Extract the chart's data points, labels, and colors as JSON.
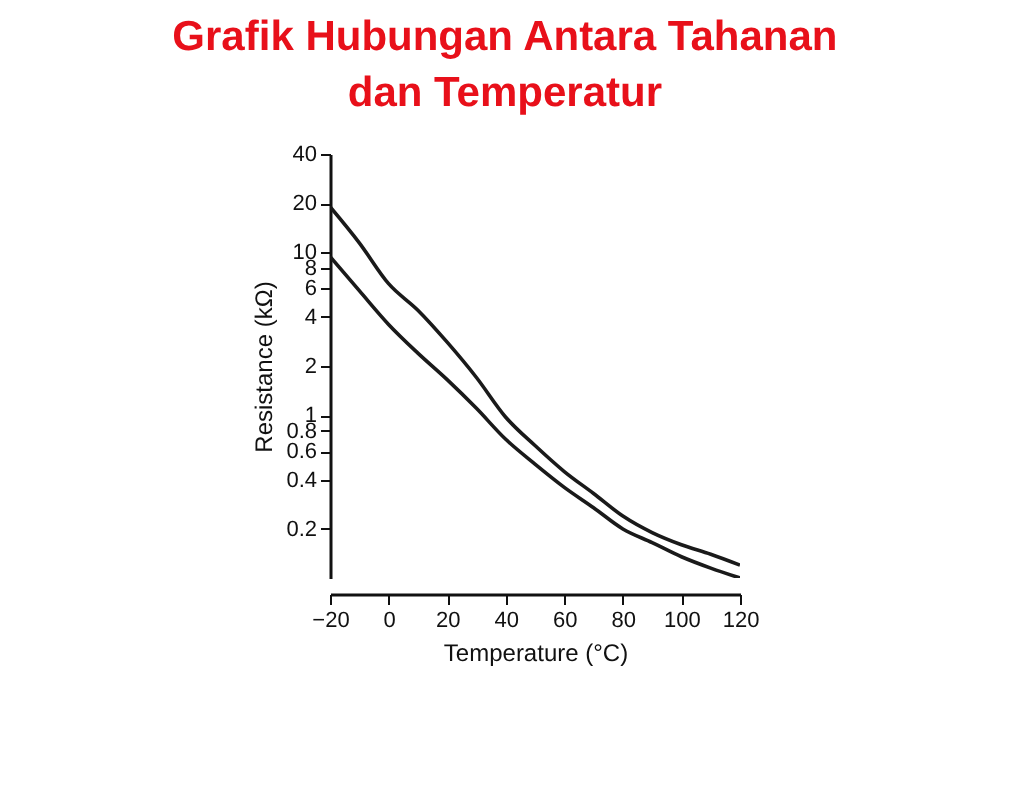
{
  "chart_data": {
    "type": "line",
    "title": "Grafik Hubungan Antara Tahanan dan Temperatur",
    "xlabel": "Temperature (°C)",
    "ylabel": "Resistance (kΩ)",
    "x": [
      -20,
      -10,
      0,
      10,
      20,
      30,
      40,
      50,
      60,
      70,
      80,
      90,
      100,
      110,
      120
    ],
    "series": [
      {
        "color": "#1a1a1a",
        "values": [
          19,
          11.4,
          6.4,
          4.4,
          2.8,
          1.7,
          0.97,
          0.65,
          0.45,
          0.33,
          0.24,
          0.19,
          0.16,
          0.14,
          0.12
        ]
      },
      {
        "color": "#1a1a1a",
        "values": [
          9.4,
          5.8,
          3.6,
          2.4,
          1.65,
          1.1,
          0.71,
          0.5,
          0.36,
          0.27,
          0.2,
          0.165,
          0.135,
          0.115,
          0.1
        ]
      }
    ],
    "log": "y",
    "xlim": [
      -20,
      120
    ],
    "xticks": [
      -20,
      0,
      20,
      40,
      60,
      80,
      100,
      120
    ],
    "ylim": [
      0.1,
      40
    ],
    "yticks": [
      0.2,
      0.4,
      0.6,
      0.8,
      1,
      2,
      4,
      6,
      8,
      10,
      20,
      40
    ]
  }
}
